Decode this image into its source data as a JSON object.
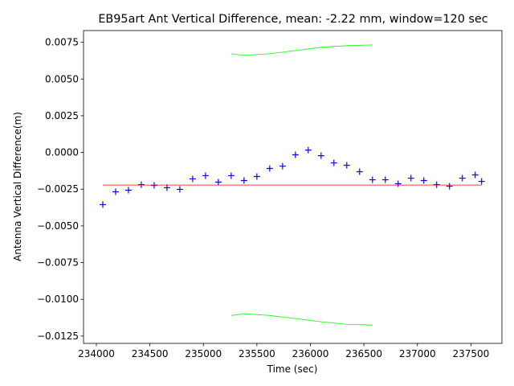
{
  "chart_data": {
    "type": "scatter",
    "title": "EB95art Ant Vertical Difference, mean: -2.22 mm, window=120 sec",
    "xlabel": "Time (sec)",
    "ylabel": "Antenna Vertical Difference(m)",
    "xlim": [
      233880,
      237790
    ],
    "ylim": [
      -0.013,
      0.0083
    ],
    "xticks": [
      234000,
      234500,
      235000,
      235500,
      236000,
      236500,
      237000,
      237500
    ],
    "yticks": [
      {
        "value": 0.0075,
        "label": "0.0075"
      },
      {
        "value": 0.005,
        "label": "0.0050"
      },
      {
        "value": 0.0025,
        "label": "0.0025"
      },
      {
        "value": 0,
        "label": "0.0000"
      },
      {
        "value": -0.0025,
        "label": "−0.0025"
      },
      {
        "value": -0.005,
        "label": "−0.0050"
      },
      {
        "value": -0.0075,
        "label": "−0.0075"
      },
      {
        "value": -0.01,
        "label": "−0.0100"
      },
      {
        "value": -0.0125,
        "label": "−0.0125"
      }
    ],
    "series": [
      {
        "kind": "marker",
        "color": "#0000ff",
        "x": [
          234060,
          234180,
          234300,
          234420,
          234540,
          234660,
          234780,
          234900,
          235020,
          235140,
          235260,
          235380,
          235500,
          235620,
          235740,
          235860,
          235980,
          236100,
          236220,
          236340,
          236460,
          236580,
          236700,
          236820,
          236940,
          237060,
          237180,
          237300,
          237420,
          237540,
          237600
        ],
        "values": [
          -0.00355,
          -0.00268,
          -0.00257,
          -0.00219,
          -0.00224,
          -0.0024,
          -0.00251,
          -0.0018,
          -0.00158,
          -0.00202,
          -0.00158,
          -0.00191,
          -0.00164,
          -0.00109,
          -0.00093,
          -0.00016,
          0.00016,
          -0.00022,
          -0.00071,
          -0.00087,
          -0.00131,
          -0.00186,
          -0.00186,
          -0.00213,
          -0.00175,
          -0.00191,
          -0.00219,
          -0.0023,
          -0.00175,
          -0.00153,
          -0.00197
        ]
      },
      {
        "kind": "line",
        "color": "#ff0000",
        "x": [
          234060,
          237600
        ],
        "values": [
          -0.00222,
          -0.00222
        ]
      },
      {
        "kind": "line",
        "color": "#00ff00",
        "x": [
          235260,
          235380,
          235620,
          235860,
          236100,
          236340,
          236580
        ],
        "values": [
          0.00672,
          0.00661,
          0.00672,
          0.00694,
          0.00716,
          0.00727,
          0.00732
        ]
      },
      {
        "kind": "line",
        "color": "#00ff00",
        "x": [
          235260,
          235380,
          235620,
          235860,
          236100,
          236340,
          236580
        ],
        "values": [
          -0.0111,
          -0.01098,
          -0.0111,
          -0.01131,
          -0.01153,
          -0.0117,
          -0.01175
        ]
      }
    ]
  }
}
